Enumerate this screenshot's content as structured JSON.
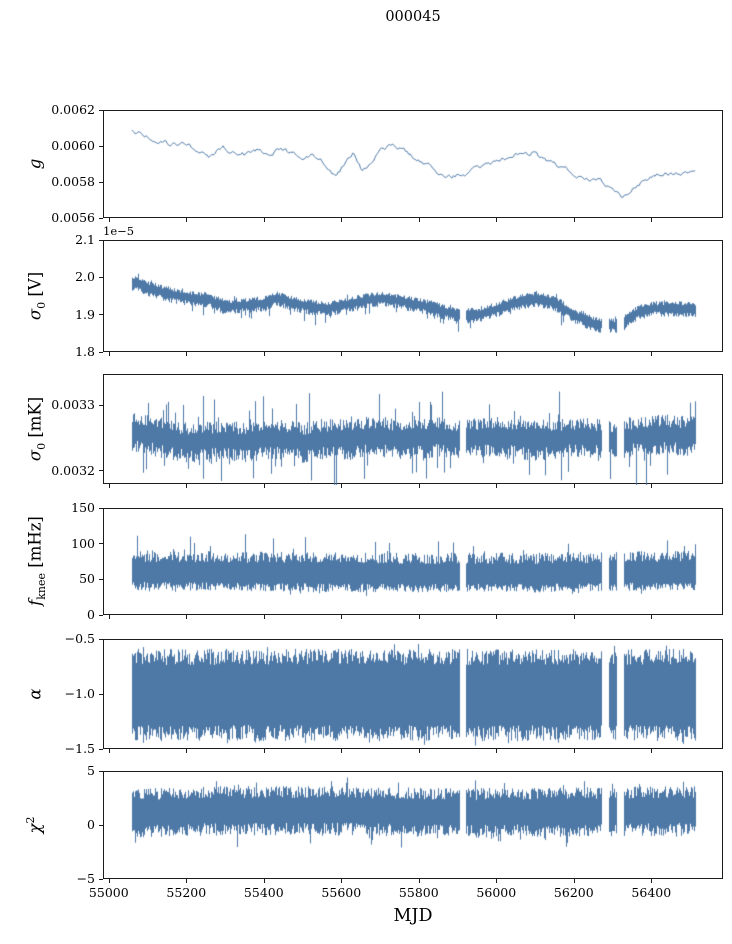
{
  "title": "000045",
  "chart_data": {
    "type": "line",
    "title": "000045",
    "xlabel": "MJD",
    "line_color": "#4e79a7",
    "x_axis": {
      "range": [
        54985,
        56585
      ],
      "ticks": [
        55000,
        55200,
        55400,
        55600,
        55800,
        56000,
        56200,
        56400
      ],
      "tick_labels": [
        "55000",
        "55200",
        "55400",
        "55600",
        "55800",
        "56000",
        "56200",
        "56400"
      ]
    },
    "data_range": [
      55057,
      56512
    ],
    "gaps": [
      [
        55903,
        55918
      ],
      [
        56270,
        56287
      ],
      [
        56308,
        56325
      ]
    ],
    "panels": [
      {
        "name": "g",
        "label_parts": {
          "pre": "g"
        },
        "ylim": [
          0.0056,
          0.0062
        ],
        "yticks": [
          0.0056,
          0.0058,
          0.006,
          0.0062
        ],
        "ytick_labels": [
          "0.0056",
          "0.0058",
          "0.0060",
          "0.0062"
        ],
        "style": "line",
        "line": {
          "noise_amp": 1.2e-05
        },
        "trend": [
          [
            55060,
            0.00609
          ],
          [
            55090,
            0.00607
          ],
          [
            55120,
            0.00604
          ],
          [
            55160,
            0.00602
          ],
          [
            55200,
            0.00601
          ],
          [
            55230,
            0.00597
          ],
          [
            55260,
            0.00595
          ],
          [
            55290,
            0.00599
          ],
          [
            55320,
            0.00597
          ],
          [
            55350,
            0.00596
          ],
          [
            55380,
            0.00598
          ],
          [
            55410,
            0.00596
          ],
          [
            55440,
            0.006
          ],
          [
            55470,
            0.00597
          ],
          [
            55500,
            0.00595
          ],
          [
            55530,
            0.00594
          ],
          [
            55560,
            0.0059
          ],
          [
            55585,
            0.00583
          ],
          [
            55610,
            0.00592
          ],
          [
            55630,
            0.00597
          ],
          [
            55650,
            0.00588
          ],
          [
            55670,
            0.00591
          ],
          [
            55700,
            0.00597
          ],
          [
            55730,
            0.006
          ],
          [
            55760,
            0.00598
          ],
          [
            55790,
            0.00594
          ],
          [
            55820,
            0.0059
          ],
          [
            55850,
            0.00587
          ],
          [
            55880,
            0.00584
          ],
          [
            55910,
            0.00584
          ],
          [
            55940,
            0.00586
          ],
          [
            55970,
            0.00589
          ],
          [
            56000,
            0.00592
          ],
          [
            56030,
            0.00594
          ],
          [
            56060,
            0.00596
          ],
          [
            56090,
            0.00597
          ],
          [
            56120,
            0.00592
          ],
          [
            56150,
            0.00589
          ],
          [
            56180,
            0.00587
          ],
          [
            56210,
            0.00585
          ],
          [
            56240,
            0.00582
          ],
          [
            56270,
            0.0058
          ],
          [
            56300,
            0.00577
          ],
          [
            56320,
            0.00573
          ],
          [
            56340,
            0.00577
          ],
          [
            56370,
            0.0058
          ],
          [
            56400,
            0.00584
          ],
          [
            56430,
            0.00586
          ],
          [
            56450,
            0.00584
          ],
          [
            56480,
            0.00585
          ],
          [
            56510,
            0.00586
          ]
        ]
      },
      {
        "name": "sigma0-V",
        "label_parts": {
          "pre": "σ",
          "sub": "0",
          "post": " [V]"
        },
        "offset_text": "1e−5",
        "unit_scale": "1e-5",
        "ylim": [
          1.8,
          2.1
        ],
        "yticks": [
          1.8,
          1.9,
          2.0,
          2.1
        ],
        "ytick_labels": [
          "1.8",
          "1.9",
          "2.0",
          "2.1"
        ],
        "style": "band",
        "band": {
          "base": 0.4,
          "up": 0.018,
          "dn": 0.024,
          "spike_p": 0.07,
          "spike_up": 0.012,
          "spike_dn": 0.028
        },
        "trend": [
          [
            55060,
            1.99
          ],
          [
            55100,
            1.975
          ],
          [
            55150,
            1.96
          ],
          [
            55200,
            1.95
          ],
          [
            55250,
            1.945
          ],
          [
            55300,
            1.925
          ],
          [
            55350,
            1.93
          ],
          [
            55400,
            1.935
          ],
          [
            55430,
            1.95
          ],
          [
            55470,
            1.935
          ],
          [
            55520,
            1.925
          ],
          [
            55560,
            1.92
          ],
          [
            55600,
            1.928
          ],
          [
            55650,
            1.94
          ],
          [
            55700,
            1.948
          ],
          [
            55750,
            1.94
          ],
          [
            55800,
            1.93
          ],
          [
            55850,
            1.917
          ],
          [
            55900,
            1.9
          ],
          [
            55950,
            1.905
          ],
          [
            56000,
            1.92
          ],
          [
            56050,
            1.938
          ],
          [
            56100,
            1.948
          ],
          [
            56150,
            1.935
          ],
          [
            56200,
            1.9
          ],
          [
            56250,
            1.88
          ],
          [
            56300,
            1.875
          ],
          [
            56330,
            1.885
          ],
          [
            56360,
            1.91
          ],
          [
            56400,
            1.92
          ],
          [
            56450,
            1.922
          ],
          [
            56510,
            1.918
          ]
        ]
      },
      {
        "name": "sigma0-mK",
        "label_parts": {
          "pre": "σ",
          "sub": "0",
          "post": " [mK]"
        },
        "ylim": [
          0.00318,
          0.003348
        ],
        "yticks": [
          0.0032,
          0.0033
        ],
        "ytick_labels": [
          "0.0032",
          "0.0033"
        ],
        "style": "band",
        "band": {
          "base": 0.35,
          "up": 3e-05,
          "dn": 3.2e-05,
          "spike_p": 0.1,
          "spike_up": 4.5e-05,
          "spike_dn": 5e-05
        },
        "trend": [
          [
            55060,
            0.003262
          ],
          [
            55100,
            0.003258
          ],
          [
            55140,
            0.003252
          ],
          [
            55180,
            0.003247
          ],
          [
            55220,
            0.003245
          ],
          [
            55260,
            0.003247
          ],
          [
            55300,
            0.003249
          ],
          [
            55340,
            0.003246
          ],
          [
            55380,
            0.003248
          ],
          [
            55420,
            0.003252
          ],
          [
            55460,
            0.003249
          ],
          [
            55500,
            0.003246
          ],
          [
            55540,
            0.003249
          ],
          [
            55580,
            0.003252
          ],
          [
            55620,
            0.00325
          ],
          [
            55660,
            0.003253
          ],
          [
            55700,
            0.003255
          ],
          [
            55740,
            0.003252
          ],
          [
            55780,
            0.00325
          ],
          [
            55820,
            0.003253
          ],
          [
            55860,
            0.003255
          ],
          [
            55900,
            0.00325
          ],
          [
            55940,
            0.003252
          ],
          [
            55980,
            0.003255
          ],
          [
            56020,
            0.003253
          ],
          [
            56060,
            0.003251
          ],
          [
            56100,
            0.003249
          ],
          [
            56140,
            0.003251
          ],
          [
            56180,
            0.003253
          ],
          [
            56220,
            0.003255
          ],
          [
            56260,
            0.003252
          ],
          [
            56300,
            0.00325
          ],
          [
            56340,
            0.003254
          ],
          [
            56380,
            0.003256
          ],
          [
            56420,
            0.003258
          ],
          [
            56460,
            0.003257
          ],
          [
            56510,
            0.003255
          ]
        ]
      },
      {
        "name": "f-knee",
        "label_parts": {
          "pre": "f",
          "sub": "knee",
          "post": " [mHz]"
        },
        "ylim": [
          0,
          150
        ],
        "yticks": [
          0,
          50,
          100,
          150
        ],
        "ytick_labels": [
          "0",
          "50",
          "100",
          "150"
        ],
        "style": "band",
        "band": {
          "base": 0.5,
          "up": 32,
          "dn": 24,
          "spike_p": 0.06,
          "spike_up": 28,
          "spike_dn": 10
        },
        "trend": [
          [
            55060,
            60
          ],
          [
            55400,
            58
          ],
          [
            55800,
            57
          ],
          [
            56100,
            57
          ],
          [
            56510,
            60
          ]
        ]
      },
      {
        "name": "alpha",
        "label_parts": {
          "pre": "α"
        },
        "ylim": [
          -1.5,
          -0.5
        ],
        "yticks": [
          -1.5,
          -1.0,
          -0.5
        ],
        "ytick_labels": [
          "−1.5",
          "−1.0",
          "−0.5"
        ],
        "style": "band",
        "band": {
          "base": 0.65,
          "up": 0.42,
          "dn": 0.42,
          "spike_p": 0.06,
          "spike_up": 0.07,
          "spike_dn": 0.07
        },
        "trend": [
          [
            55060,
            -1.0
          ],
          [
            56510,
            -1.0
          ]
        ]
      },
      {
        "name": "chi2",
        "label_parts": {
          "pre": "χ",
          "sup": "2"
        },
        "ylim": [
          -5,
          5
        ],
        "yticks": [
          -5,
          0,
          5
        ],
        "ytick_labels": [
          "−5",
          "0",
          "5"
        ],
        "style": "band",
        "band": {
          "base": 0.5,
          "up": 2.2,
          "dn": 2.4,
          "spike_p": 0.05,
          "spike_up": 1.0,
          "spike_dn": 1.3
        },
        "trend": [
          [
            55060,
            1.3
          ],
          [
            55300,
            1.5
          ],
          [
            55600,
            1.5
          ],
          [
            55900,
            1.3
          ],
          [
            56200,
            1.4
          ],
          [
            56510,
            1.5
          ]
        ]
      }
    ]
  }
}
